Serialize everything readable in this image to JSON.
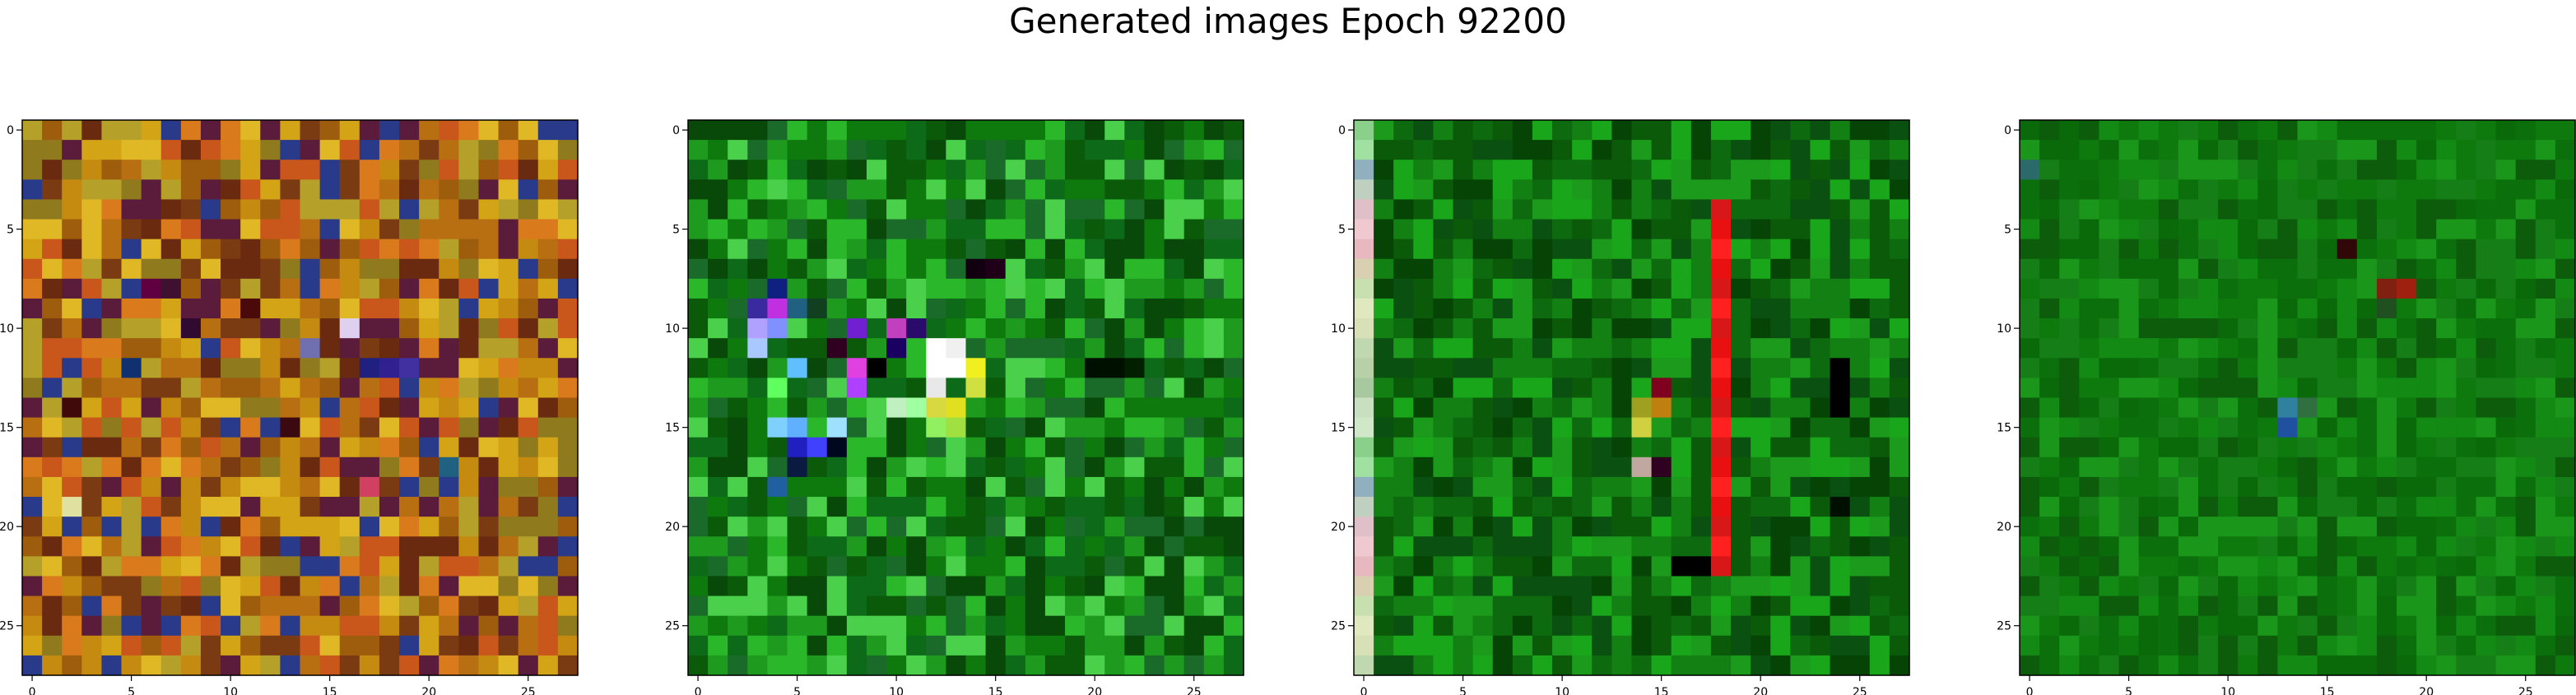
{
  "figure": {
    "title": "Generated images Epoch 92200"
  },
  "colors": {
    "panel1_palette": [
      "#c58a10",
      "#b86f12",
      "#d3a415",
      "#9e5d0c",
      "#e0b825",
      "#8f7a1e",
      "#c9561a",
      "#7a3b12",
      "#b5a02a",
      "#d97a1c",
      "#5a1c3a",
      "#2a3a8a",
      "#6a2a10"
    ],
    "panel2_palette": [
      "#0e7a0e",
      "#0a5a0a",
      "#1e9a1e",
      "#0c6a18",
      "#2ab82a",
      "#084808",
      "#4ad04a",
      "#1a6a2a"
    ],
    "panel3_palette": [
      "#0a5a0a",
      "#0e6a0e",
      "#064406",
      "#128012",
      "#1c9a1c",
      "#0a5010",
      "#1aa61a"
    ],
    "panel4_palette": [
      "#0e7a0e",
      "#0a6a0a",
      "#138a13",
      "#0c5c0c",
      "#1a961a",
      "#0b700b",
      "#167e16"
    ]
  },
  "chart_data": [
    {
      "type": "heatmap",
      "title": "",
      "xlabel": "",
      "ylabel": "",
      "xlim": [
        -0.5,
        27.5
      ],
      "ylim": [
        27.5,
        -0.5
      ],
      "grid_size": [
        28,
        28
      ],
      "x_ticks": [
        0,
        5,
        10,
        15,
        20,
        25
      ],
      "y_ticks": [
        0,
        5,
        10,
        15,
        20,
        25
      ],
      "x_tick_labels": [
        "0",
        "5",
        "10",
        "15",
        "20",
        "25"
      ],
      "y_tick_labels": [
        "0",
        "5",
        "10",
        "15",
        "20",
        "25"
      ],
      "description_values": "noisy orange/olive RGB pixels"
    },
    {
      "type": "heatmap",
      "title": "",
      "xlabel": "",
      "ylabel": "",
      "xlim": [
        -0.5,
        27.5
      ],
      "ylim": [
        27.5,
        -0.5
      ],
      "grid_size": [
        28,
        28
      ],
      "x_ticks": [
        0,
        5,
        10,
        15,
        20,
        25
      ],
      "y_ticks": [
        0,
        5,
        10,
        15,
        20,
        25
      ],
      "x_tick_labels": [
        "0",
        "5",
        "10",
        "15",
        "20",
        "25"
      ],
      "y_tick_labels": [
        "0",
        "5",
        "10",
        "15",
        "20",
        "25"
      ],
      "description_values": "green pixels with bright center cluster"
    },
    {
      "type": "heatmap",
      "title": "",
      "xlabel": "",
      "ylabel": "",
      "xlim": [
        -0.5,
        27.5
      ],
      "ylim": [
        27.5,
        -0.5
      ],
      "grid_size": [
        28,
        28
      ],
      "x_ticks": [
        0,
        5,
        10,
        15,
        20,
        25
      ],
      "y_ticks": [
        0,
        5,
        10,
        15,
        20,
        25
      ],
      "x_tick_labels": [
        "0",
        "5",
        "10",
        "15",
        "20",
        "25"
      ],
      "y_tick_labels": [
        "0",
        "5",
        "10",
        "15",
        "20",
        "25"
      ],
      "description_values": "dark green pixels with red vertical stripe at column 18 and light left column"
    },
    {
      "type": "heatmap",
      "title": "",
      "xlabel": "",
      "ylabel": "",
      "xlim": [
        -0.5,
        27.5
      ],
      "ylim": [
        27.5,
        -0.5
      ],
      "grid_size": [
        28,
        28
      ],
      "x_ticks": [
        0,
        5,
        10,
        15,
        20,
        25
      ],
      "y_ticks": [
        0,
        5,
        10,
        15,
        20,
        25
      ],
      "x_tick_labels": [
        "0",
        "5",
        "10",
        "15",
        "20",
        "25"
      ],
      "y_tick_labels": [
        "0",
        "5",
        "10",
        "15",
        "20",
        "25"
      ],
      "description_values": "medium green noisy pixels"
    }
  ]
}
